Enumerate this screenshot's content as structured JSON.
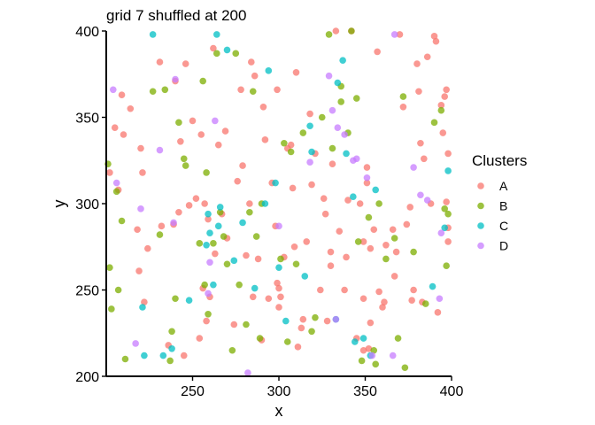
{
  "chart_data": {
    "type": "scatter",
    "title": "grid 7 shuffled at 200",
    "xlabel": "x",
    "ylabel": "y",
    "xlim": [
      200,
      400
    ],
    "ylim": [
      200,
      400
    ],
    "xticks": [
      250,
      300,
      350,
      400
    ],
    "yticks": [
      200,
      250,
      300,
      350,
      400
    ],
    "legend": {
      "title": "Clusters",
      "position": "right"
    },
    "series": [
      {
        "name": "A",
        "color": "#F8766D",
        "points": [
          [
            202,
            318
          ],
          [
            205,
            344
          ],
          [
            207,
            308
          ],
          [
            209,
            363
          ],
          [
            210,
            340
          ],
          [
            214,
            355
          ],
          [
            218,
            285
          ],
          [
            219,
            261
          ],
          [
            220,
            332
          ],
          [
            221,
            318
          ],
          [
            222,
            243
          ],
          [
            224,
            274
          ],
          [
            231,
            382
          ],
          [
            232,
            287
          ],
          [
            236,
            218
          ],
          [
            239,
            288
          ],
          [
            240,
            371
          ],
          [
            242,
            295
          ],
          [
            243,
            336
          ],
          [
            245,
            212
          ],
          [
            246,
            381
          ],
          [
            248,
            299
          ],
          [
            250,
            348
          ],
          [
            252,
            303
          ],
          [
            254,
            222
          ],
          [
            255,
            340
          ],
          [
            256,
            251
          ],
          [
            257,
            300
          ],
          [
            258,
            232
          ],
          [
            259,
            291
          ],
          [
            260,
            246
          ],
          [
            262,
            390
          ],
          [
            263,
            271
          ],
          [
            265,
            334
          ],
          [
            267,
            294
          ],
          [
            269,
            342
          ],
          [
            270,
            280
          ],
          [
            274,
            230
          ],
          [
            276,
            313
          ],
          [
            278,
            366
          ],
          [
            279,
            322
          ],
          [
            281,
            270
          ],
          [
            283,
            300
          ],
          [
            284,
            382
          ],
          [
            285,
            246
          ],
          [
            286,
            374
          ],
          [
            288,
            268
          ],
          [
            290,
            221
          ],
          [
            291,
            356
          ],
          [
            292,
            337
          ],
          [
            294,
            245
          ],
          [
            296,
            312
          ],
          [
            298,
            287
          ],
          [
            299,
            254
          ],
          [
            299,
            366
          ],
          [
            300,
            251
          ],
          [
            300,
            240
          ],
          [
            301,
            246
          ],
          [
            303,
            269
          ],
          [
            305,
            332
          ],
          [
            307,
            334
          ],
          [
            308,
            309
          ],
          [
            309,
            275
          ],
          [
            310,
            376
          ],
          [
            311,
            217
          ],
          [
            313,
            228
          ],
          [
            314,
            233
          ],
          [
            316,
            278
          ],
          [
            318,
            352
          ],
          [
            319,
            311
          ],
          [
            321,
            329
          ],
          [
            324,
            250
          ],
          [
            326,
            303
          ],
          [
            327,
            294
          ],
          [
            328,
            232
          ],
          [
            330,
            272
          ],
          [
            330,
            264
          ],
          [
            331,
            323
          ],
          [
            333,
            400
          ],
          [
            335,
            284
          ],
          [
            338,
            250
          ],
          [
            339,
            269
          ],
          [
            340,
            302
          ],
          [
            342,
            400
          ],
          [
            345,
            222
          ],
          [
            347,
            300
          ],
          [
            349,
            245
          ],
          [
            349,
            215
          ],
          [
            349,
            278
          ],
          [
            351,
            321
          ],
          [
            351,
            312
          ],
          [
            352,
            216
          ],
          [
            353,
            231
          ],
          [
            353,
            274
          ],
          [
            355,
            285
          ],
          [
            357,
            388
          ],
          [
            358,
            249
          ],
          [
            360,
            240
          ],
          [
            361,
            243
          ],
          [
            362,
            276
          ],
          [
            366,
            285
          ],
          [
            367,
            258
          ],
          [
            368,
            272
          ],
          [
            370,
            398
          ],
          [
            372,
            356
          ],
          [
            374,
            288
          ],
          [
            376,
            298
          ],
          [
            377,
            244
          ],
          [
            378,
            250
          ],
          [
            380,
            381
          ],
          [
            381,
            365
          ],
          [
            382,
            335
          ],
          [
            383,
            243
          ],
          [
            384,
            326
          ],
          [
            386,
            385
          ],
          [
            388,
            300
          ],
          [
            390,
            397
          ],
          [
            391,
            394
          ],
          [
            392,
            237
          ],
          [
            394,
            357
          ],
          [
            395,
            341
          ],
          [
            396,
            362
          ],
          [
            397,
            301
          ],
          [
            397,
            366
          ],
          [
            398,
            329
          ],
          [
            398,
            286
          ],
          [
            398,
            278
          ]
        ]
      },
      {
        "name": "B",
        "color": "#7CAE00",
        "points": [
          [
            201,
            323
          ],
          [
            202,
            263
          ],
          [
            203,
            239
          ],
          [
            206,
            307
          ],
          [
            207,
            250
          ],
          [
            209,
            290
          ],
          [
            211,
            210
          ],
          [
            227,
            365
          ],
          [
            231,
            282
          ],
          [
            234,
            366
          ],
          [
            237,
            209
          ],
          [
            238,
            226
          ],
          [
            240,
            245
          ],
          [
            242,
            347
          ],
          [
            245,
            326
          ],
          [
            246,
            322
          ],
          [
            254,
            277
          ],
          [
            256,
            371
          ],
          [
            257,
            253
          ],
          [
            258,
            318
          ],
          [
            259,
            236
          ],
          [
            262,
            277
          ],
          [
            264,
            387
          ],
          [
            266,
            295
          ],
          [
            268,
            281
          ],
          [
            270,
            265
          ],
          [
            273,
            215
          ],
          [
            275,
            387
          ],
          [
            277,
            253
          ],
          [
            281,
            230
          ],
          [
            283,
            295
          ],
          [
            285,
            365
          ],
          [
            287,
            281
          ],
          [
            289,
            222
          ],
          [
            290,
            300
          ],
          [
            301,
            268
          ],
          [
            303,
            335
          ],
          [
            305,
            220
          ],
          [
            307,
            330
          ],
          [
            310,
            265
          ],
          [
            314,
            341
          ],
          [
            319,
            226
          ],
          [
            321,
            234
          ],
          [
            325,
            350
          ],
          [
            329,
            398
          ],
          [
            331,
            332
          ],
          [
            336,
            368
          ],
          [
            336,
            359
          ],
          [
            340,
            341
          ],
          [
            342,
            400
          ],
          [
            345,
            361
          ],
          [
            346,
            278
          ],
          [
            348,
            209
          ],
          [
            352,
            292
          ],
          [
            355,
            215
          ],
          [
            356,
            207
          ],
          [
            358,
            300
          ],
          [
            362,
            268
          ],
          [
            367,
            280
          ],
          [
            369,
            222
          ],
          [
            372,
            362
          ],
          [
            373,
            205
          ],
          [
            378,
            272
          ],
          [
            385,
            242
          ],
          [
            390,
            347
          ],
          [
            394,
            354
          ],
          [
            396,
            297
          ],
          [
            397,
            264
          ],
          [
            398,
            294
          ]
        ]
      },
      {
        "name": "C",
        "color": "#00BFC4",
        "points": [
          [
            221,
            240
          ],
          [
            222,
            212
          ],
          [
            227,
            398
          ],
          [
            233,
            212
          ],
          [
            238,
            216
          ],
          [
            248,
            244
          ],
          [
            258,
            276
          ],
          [
            259,
            294
          ],
          [
            260,
            283
          ],
          [
            262,
            253
          ],
          [
            264,
            398
          ],
          [
            265,
            287
          ],
          [
            266,
            298
          ],
          [
            270,
            389
          ],
          [
            274,
            267
          ],
          [
            279,
            289
          ],
          [
            286,
            251
          ],
          [
            292,
            300
          ],
          [
            294,
            377
          ],
          [
            298,
            312
          ],
          [
            300,
            263
          ],
          [
            304,
            232
          ],
          [
            315,
            258
          ],
          [
            318,
            345
          ],
          [
            319,
            330
          ],
          [
            333,
            233
          ],
          [
            334,
            370
          ],
          [
            337,
            383
          ],
          [
            339,
            329
          ],
          [
            343,
            304
          ],
          [
            344,
            220
          ],
          [
            349,
            222
          ],
          [
            353,
            212
          ],
          [
            356,
            308
          ],
          [
            389,
            252
          ],
          [
            396,
            286
          ],
          [
            398,
            319
          ]
        ]
      },
      {
        "name": "D",
        "color": "#C77CFF",
        "points": [
          [
            204,
            366
          ],
          [
            206,
            312
          ],
          [
            217,
            219
          ],
          [
            220,
            297
          ],
          [
            231,
            331
          ],
          [
            239,
            289
          ],
          [
            240,
            372
          ],
          [
            259,
            248
          ],
          [
            260,
            266
          ],
          [
            263,
            348
          ],
          [
            282,
            202
          ],
          [
            300,
            287
          ],
          [
            318,
            324
          ],
          [
            329,
            374
          ],
          [
            331,
            354
          ],
          [
            333,
            233
          ],
          [
            334,
            344
          ],
          [
            338,
            340
          ],
          [
            343,
            325
          ],
          [
            345,
            326
          ],
          [
            351,
            315
          ],
          [
            354,
            212
          ],
          [
            366,
            212
          ],
          [
            367,
            398
          ],
          [
            378,
            321
          ],
          [
            382,
            305
          ],
          [
            386,
            302
          ],
          [
            393,
            245
          ],
          [
            394,
            283
          ]
        ]
      }
    ]
  }
}
